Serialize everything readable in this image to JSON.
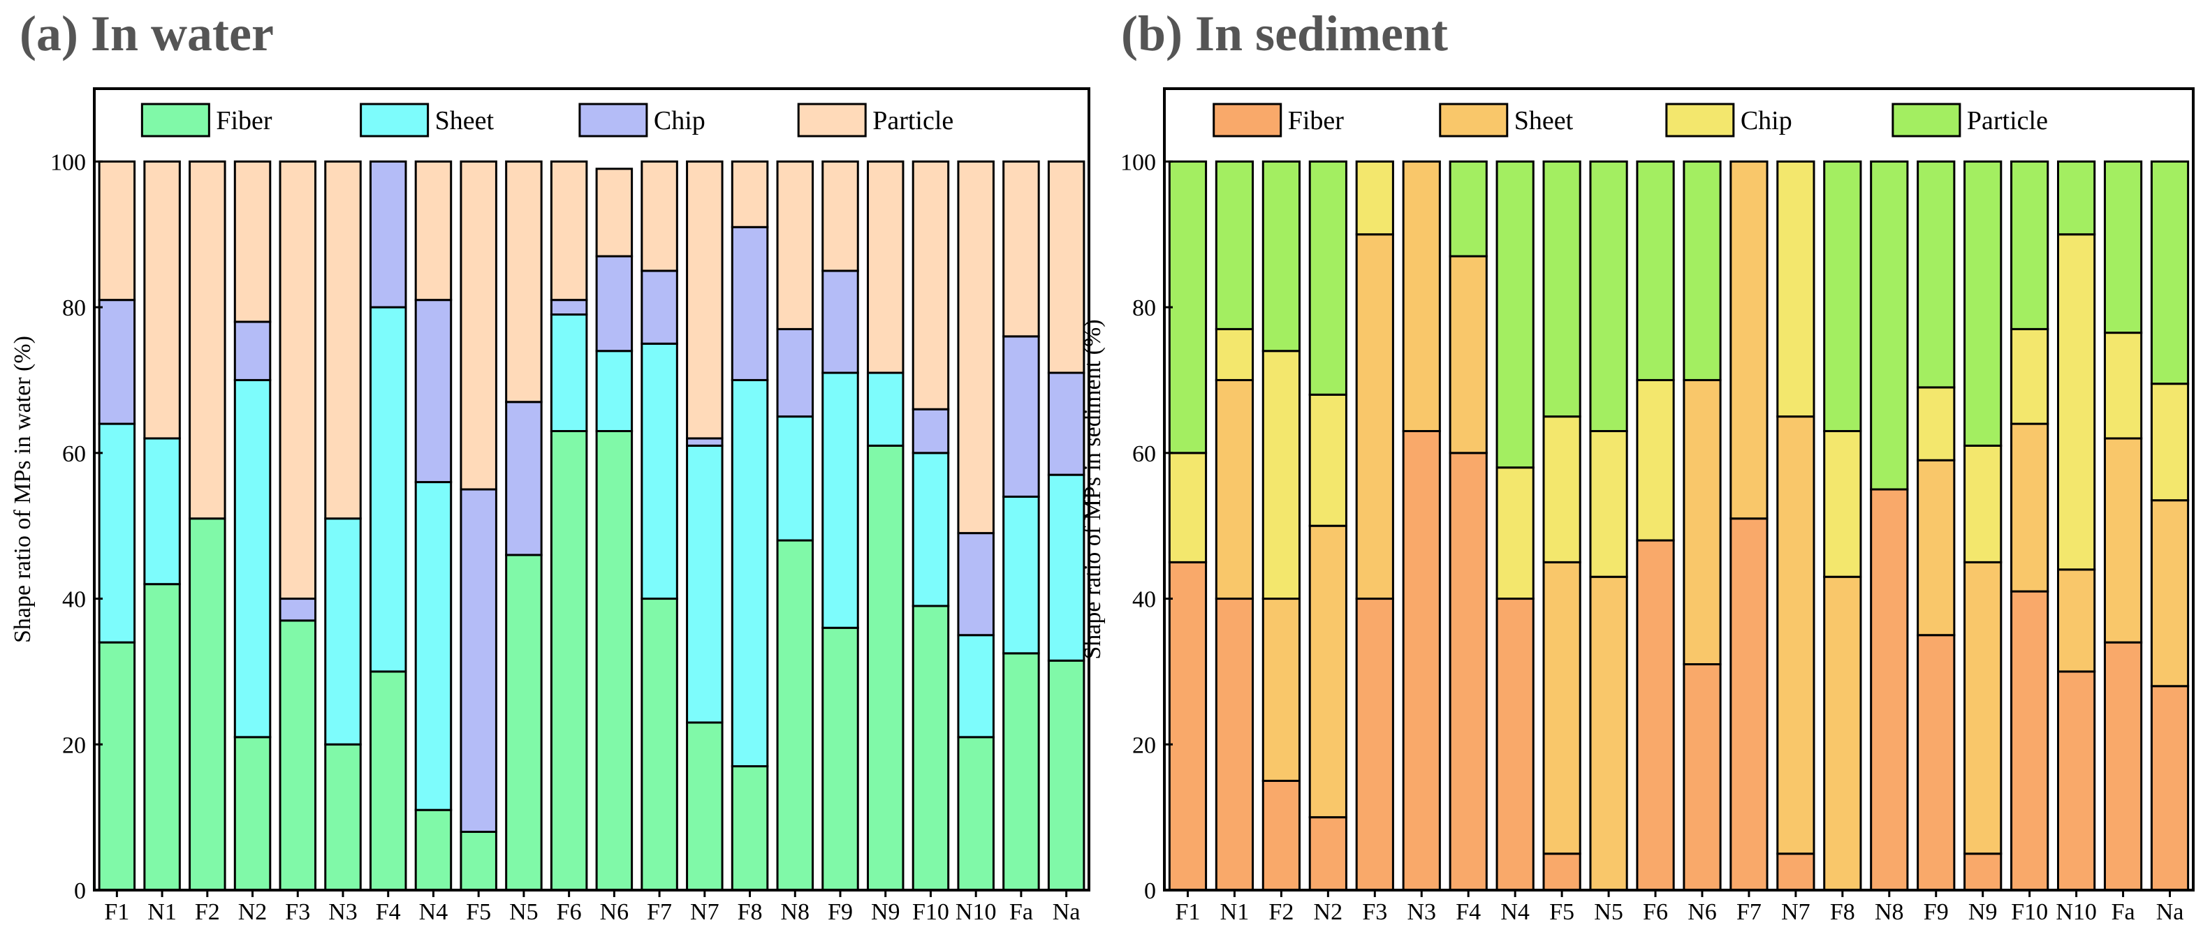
{
  "chart_data": [
    {
      "type": "bar",
      "stacked": true,
      "title": "(a) In water",
      "xlabel": "",
      "ylabel": "Shape ratio of MPs in water (%)",
      "ylim": [
        0,
        110
      ],
      "yticks": [
        0,
        20,
        40,
        60,
        80,
        100
      ],
      "legend_position": "top",
      "categories": [
        "F1",
        "N1",
        "F2",
        "N2",
        "F3",
        "N3",
        "F4",
        "N4",
        "F5",
        "N5",
        "F6",
        "N6",
        "F7",
        "N7",
        "F8",
        "N8",
        "F9",
        "N9",
        "F10",
        "N10",
        "Fa",
        "Na"
      ],
      "series": [
        {
          "name": "Fiber",
          "color": "#80F9A8",
          "values": [
            34,
            42,
            51,
            21,
            37,
            20,
            30,
            11,
            8,
            46,
            63,
            63,
            40,
            23,
            17,
            48,
            36,
            61,
            39,
            21,
            32.5,
            31.5
          ]
        },
        {
          "name": "Sheet",
          "color": "#7DFCFC",
          "values": [
            30,
            20,
            0,
            49,
            0,
            31,
            50,
            45,
            0,
            0,
            16,
            11,
            35,
            38,
            53,
            17,
            35,
            10,
            21,
            14,
            21.5,
            25.5
          ]
        },
        {
          "name": "Chip",
          "color": "#B4BCF7",
          "values": [
            17,
            0,
            0,
            8,
            3,
            0,
            20,
            25,
            47,
            21,
            2,
            13,
            10,
            1,
            21,
            12,
            14,
            0,
            6,
            14,
            22,
            14
          ]
        },
        {
          "name": "Particle",
          "color": "#FFDAB9",
          "values": [
            19,
            38,
            49,
            22,
            60,
            49,
            0,
            19,
            45,
            33,
            19,
            12,
            15,
            38,
            9,
            23,
            15,
            29,
            34,
            51,
            24,
            29
          ]
        }
      ]
    },
    {
      "type": "bar",
      "stacked": true,
      "title": "(b) In sediment",
      "xlabel": "",
      "ylabel": "Shape ratio of MPs in sediment (%)",
      "ylim": [
        0,
        110
      ],
      "yticks": [
        0,
        20,
        40,
        60,
        80,
        100
      ],
      "legend_position": "top",
      "categories": [
        "F1",
        "N1",
        "F2",
        "N2",
        "F3",
        "N3",
        "F4",
        "N4",
        "F5",
        "N5",
        "F6",
        "N6",
        "F7",
        "N7",
        "F8",
        "N8",
        "F9",
        "N9",
        "F10",
        "N10",
        "Fa",
        "Na"
      ],
      "series": [
        {
          "name": "Fiber",
          "color": "#F9A96A",
          "values": [
            45,
            40,
            15,
            10,
            40,
            63,
            60,
            40,
            5,
            0,
            48,
            31,
            51,
            5,
            0,
            55,
            35,
            5,
            41,
            30,
            34,
            28
          ]
        },
        {
          "name": "Sheet",
          "color": "#F9C76A",
          "values": [
            0,
            30,
            25,
            40,
            50,
            37,
            27,
            0,
            40,
            43,
            0,
            39,
            49,
            60,
            43,
            0,
            24,
            40,
            23,
            14,
            28,
            25.5
          ]
        },
        {
          "name": "Chip",
          "color": "#F3E76D",
          "values": [
            15,
            7,
            34,
            18,
            10,
            0,
            0,
            18,
            20,
            20,
            22,
            0,
            0,
            35,
            20,
            0,
            10,
            16,
            13,
            46,
            14.5,
            16
          ]
        },
        {
          "name": "Particle",
          "color": "#A3EE61",
          "values": [
            40,
            23,
            26,
            32,
            0,
            0,
            13,
            42,
            35,
            37,
            30,
            30,
            0,
            0,
            37,
            45,
            31,
            39,
            23,
            10,
            23.5,
            30.5
          ]
        }
      ]
    }
  ]
}
